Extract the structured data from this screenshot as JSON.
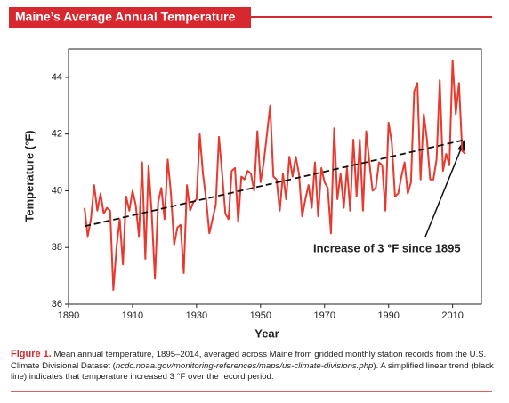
{
  "chart_data": {
    "type": "line",
    "title": "Maine’s Average Annual Temperature",
    "xlabel": "Year",
    "ylabel": "Temperature (°F)",
    "xlim": [
      1890,
      2019
    ],
    "xticks": [
      1890,
      1910,
      1930,
      1950,
      1970,
      1990,
      2010
    ],
    "ylim": [
      36,
      45
    ],
    "yticks": [
      36,
      38,
      40,
      42,
      44
    ],
    "annotation": "Increase of 3 °F since 1895",
    "series": [
      {
        "color": "#e8392f",
        "x": [
          1895,
          1896,
          1897,
          1898,
          1899,
          1900,
          1901,
          1902,
          1903,
          1904,
          1905,
          1906,
          1907,
          1908,
          1909,
          1910,
          1911,
          1912,
          1913,
          1914,
          1915,
          1916,
          1917,
          1918,
          1919,
          1920,
          1921,
          1922,
          1923,
          1924,
          1925,
          1926,
          1927,
          1928,
          1929,
          1930,
          1931,
          1932,
          1933,
          1934,
          1935,
          1936,
          1937,
          1938,
          1939,
          1940,
          1941,
          1942,
          1943,
          1944,
          1945,
          1946,
          1947,
          1948,
          1949,
          1950,
          1951,
          1952,
          1953,
          1954,
          1955,
          1956,
          1957,
          1958,
          1959,
          1960,
          1961,
          1962,
          1963,
          1964,
          1965,
          1966,
          1967,
          1968,
          1969,
          1970,
          1971,
          1972,
          1973,
          1974,
          1975,
          1976,
          1977,
          1978,
          1979,
          1980,
          1981,
          1982,
          1983,
          1984,
          1985,
          1986,
          1987,
          1988,
          1989,
          1990,
          1991,
          1992,
          1993,
          1994,
          1995,
          1996,
          1997,
          1998,
          1999,
          2000,
          2001,
          2002,
          2003,
          2004,
          2005,
          2006,
          2007,
          2008,
          2009,
          2010,
          2011,
          2012,
          2013,
          2014
        ],
        "values": [
          39.4,
          38.4,
          39.0,
          40.2,
          39.3,
          39.9,
          39.2,
          39.4,
          39.3,
          36.5,
          38.0,
          39.0,
          37.4,
          39.8,
          39.3,
          40.0,
          39.5,
          38.4,
          41.0,
          37.6,
          40.9,
          39.2,
          36.9,
          39.6,
          40.1,
          39.0,
          41.1,
          39.9,
          38.1,
          38.7,
          38.8,
          37.1,
          40.2,
          39.3,
          39.6,
          39.7,
          42.0,
          40.6,
          39.7,
          38.5,
          39.0,
          39.5,
          41.9,
          40.6,
          39.2,
          39.0,
          40.7,
          40.8,
          38.9,
          40.5,
          40.4,
          40.7,
          40.6,
          40.0,
          42.1,
          40.3,
          41.0,
          42.0,
          43.0,
          40.5,
          40.4,
          39.3,
          40.6,
          39.7,
          41.2,
          40.5,
          41.2,
          40.6,
          39.1,
          39.7,
          40.2,
          39.4,
          41.0,
          39.1,
          40.8,
          40.3,
          40.1,
          38.5,
          42.2,
          39.7,
          40.6,
          39.4,
          40.8,
          39.3,
          41.8,
          39.8,
          41.8,
          39.3,
          42.1,
          41.0,
          40.0,
          40.1,
          41.0,
          40.9,
          39.3,
          42.4,
          41.7,
          39.8,
          39.9,
          40.5,
          41.0,
          39.9,
          40.3,
          43.5,
          43.8,
          40.4,
          42.7,
          41.8,
          40.4,
          40.4,
          41.1,
          43.9,
          40.7,
          41.3,
          40.9,
          44.6,
          42.7,
          43.8,
          41.4,
          41.3
        ]
      },
      {
        "color": "#111111",
        "dashed": true,
        "x": [
          1895,
          2014
        ],
        "values": [
          38.75,
          41.8
        ]
      }
    ]
  },
  "caption": {
    "label": "Figure 1.",
    "text_1": "Mean annual temperature, 1895–2014, averaged across Maine from gridded monthly station records from the U.S. Climate Divisional Dataset (",
    "italic": "ncdc.noaa.gov/monitoring-references/maps/us-climate-divisions.php",
    "text_2": "). A simplified linear trend (black line) indicates that temperature increased 3 °F over the record period."
  }
}
